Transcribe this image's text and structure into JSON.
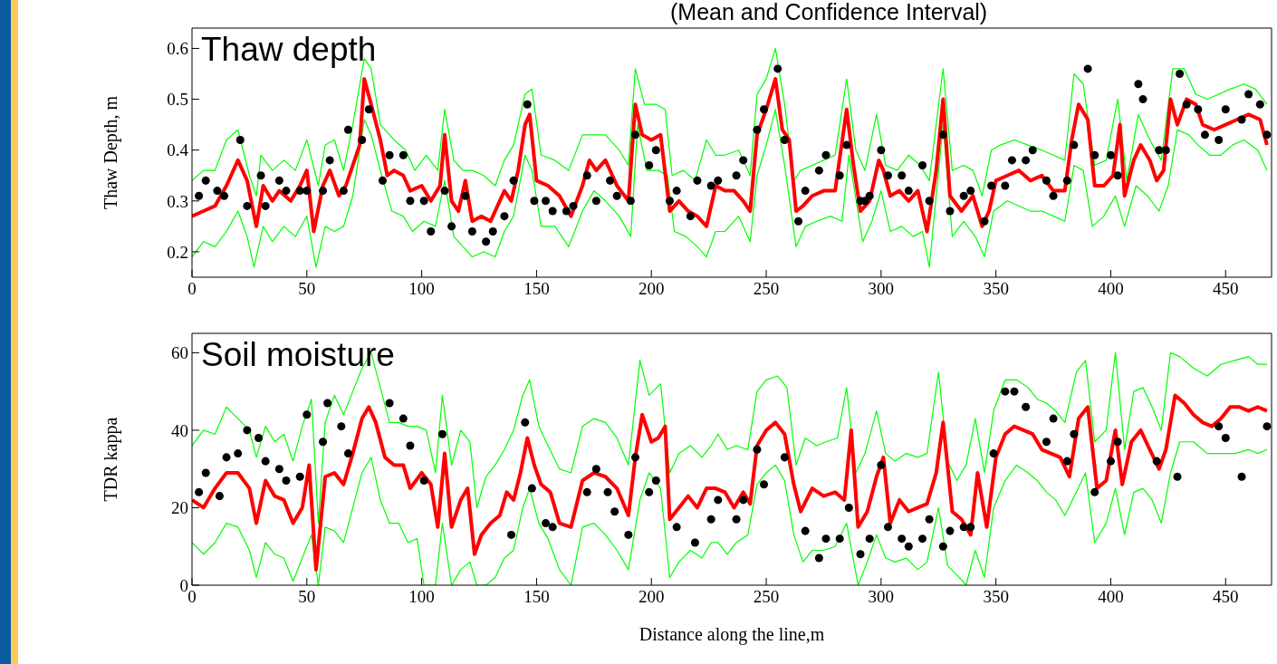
{
  "chart_data": [
    {
      "type": "line",
      "title": "(Mean and Confidence Interval)",
      "ylabel": "Thaw Depth, m",
      "annotations": [
        "Thaw depth"
      ],
      "xlim": [
        0,
        470
      ],
      "xticks": [
        0,
        50,
        100,
        150,
        200,
        250,
        300,
        350,
        400,
        450
      ],
      "ylim": [
        0.15,
        0.64
      ],
      "yticks": [
        0.2,
        0.3,
        0.4,
        0.5,
        0.6
      ],
      "series": [
        {
          "type": "line",
          "color": "#00ff00",
          "x": [
            0,
            5,
            10,
            15,
            20,
            25,
            28,
            30,
            35,
            40,
            45,
            50,
            55,
            58,
            62,
            66,
            70,
            75,
            78,
            82,
            88,
            93,
            97,
            102,
            107,
            110,
            114,
            118,
            122,
            127,
            132,
            136,
            140,
            145,
            148,
            152,
            158,
            164,
            170,
            175,
            180,
            186,
            190,
            193,
            197,
            202,
            206,
            209,
            214,
            219,
            224,
            228,
            232,
            238,
            243,
            246,
            250,
            254,
            258,
            262,
            265,
            270,
            275,
            280,
            285,
            289,
            293,
            298,
            302,
            307,
            312,
            317,
            321,
            327,
            331,
            336,
            340,
            344,
            348,
            352,
            358,
            364,
            370,
            375,
            380,
            384,
            388,
            393,
            398,
            403,
            407,
            412,
            417,
            422,
            427,
            432,
            437,
            442,
            447,
            452,
            458,
            463,
            468
          ],
          "values": [
            0.34,
            0.36,
            0.36,
            0.42,
            0.44,
            0.35,
            0.31,
            0.39,
            0.36,
            0.38,
            0.36,
            0.42,
            0.33,
            0.41,
            0.42,
            0.36,
            0.45,
            0.58,
            0.56,
            0.45,
            0.42,
            0.4,
            0.36,
            0.39,
            0.36,
            0.48,
            0.38,
            0.36,
            0.36,
            0.35,
            0.33,
            0.38,
            0.41,
            0.51,
            0.52,
            0.39,
            0.38,
            0.36,
            0.43,
            0.43,
            0.43,
            0.4,
            0.37,
            0.56,
            0.49,
            0.49,
            0.48,
            0.35,
            0.36,
            0.34,
            0.42,
            0.39,
            0.39,
            0.4,
            0.35,
            0.51,
            0.54,
            0.6,
            0.49,
            0.34,
            0.36,
            0.37,
            0.38,
            0.39,
            0.54,
            0.4,
            0.36,
            0.47,
            0.37,
            0.36,
            0.39,
            0.37,
            0.34,
            0.56,
            0.36,
            0.37,
            0.36,
            0.31,
            0.4,
            0.41,
            0.42,
            0.41,
            0.4,
            0.39,
            0.38,
            0.55,
            0.53,
            0.37,
            0.38,
            0.5,
            0.34,
            0.47,
            0.42,
            0.38,
            0.56,
            0.56,
            0.51,
            0.5,
            0.51,
            0.52,
            0.53,
            0.52,
            0.49
          ]
        },
        {
          "type": "line",
          "color": "#00ff00",
          "x": [
            0,
            5,
            10,
            15,
            20,
            24,
            27,
            31,
            35,
            40,
            45,
            50,
            54,
            58,
            62,
            66,
            70,
            75,
            78,
            82,
            87,
            92,
            96,
            101,
            106,
            110,
            114,
            118,
            122,
            127,
            132,
            136,
            140,
            145,
            148,
            152,
            158,
            164,
            170,
            175,
            180,
            186,
            191,
            194,
            198,
            203,
            207,
            210,
            215,
            220,
            224,
            228,
            232,
            238,
            243,
            246,
            250,
            254,
            258,
            263,
            267,
            272,
            278,
            283,
            286,
            292,
            296,
            300,
            304,
            309,
            314,
            318,
            321,
            327,
            331,
            336,
            341,
            345,
            349,
            355,
            360,
            365,
            370,
            375,
            380,
            384,
            388,
            392,
            397,
            402,
            406,
            411,
            416,
            421,
            425,
            429,
            434,
            438,
            443,
            448,
            453,
            458,
            464,
            468
          ],
          "values": [
            0.19,
            0.22,
            0.21,
            0.24,
            0.28,
            0.23,
            0.17,
            0.25,
            0.22,
            0.25,
            0.23,
            0.27,
            0.17,
            0.25,
            0.24,
            0.25,
            0.31,
            0.46,
            0.43,
            0.36,
            0.28,
            0.27,
            0.24,
            0.26,
            0.25,
            0.34,
            0.23,
            0.21,
            0.19,
            0.2,
            0.19,
            0.24,
            0.27,
            0.39,
            0.36,
            0.25,
            0.25,
            0.21,
            0.28,
            0.32,
            0.3,
            0.27,
            0.23,
            0.45,
            0.36,
            0.36,
            0.35,
            0.24,
            0.23,
            0.21,
            0.19,
            0.24,
            0.24,
            0.27,
            0.22,
            0.35,
            0.41,
            0.48,
            0.37,
            0.21,
            0.25,
            0.26,
            0.27,
            0.26,
            0.39,
            0.22,
            0.26,
            0.32,
            0.24,
            0.25,
            0.23,
            0.24,
            0.17,
            0.45,
            0.23,
            0.26,
            0.23,
            0.19,
            0.28,
            0.3,
            0.29,
            0.28,
            0.28,
            0.27,
            0.26,
            0.37,
            0.36,
            0.25,
            0.27,
            0.31,
            0.25,
            0.33,
            0.31,
            0.28,
            0.33,
            0.44,
            0.43,
            0.41,
            0.39,
            0.39,
            0.41,
            0.42,
            0.4,
            0.36
          ]
        },
        {
          "type": "line",
          "color": "#ff0000",
          "x": [
            0,
            5,
            10,
            15,
            20,
            24,
            28,
            31,
            35,
            38,
            43,
            47,
            50,
            53,
            57,
            60,
            64,
            67,
            70,
            73,
            75,
            78,
            82,
            85,
            88,
            92,
            95,
            100,
            104,
            108,
            110,
            113,
            116,
            119,
            122,
            126,
            130,
            133,
            136,
            139,
            142,
            145,
            147,
            150,
            155,
            160,
            165,
            170,
            173,
            176,
            180,
            185,
            190,
            193,
            196,
            200,
            204,
            208,
            212,
            216,
            220,
            224,
            228,
            232,
            236,
            240,
            243,
            246,
            250,
            254,
            257,
            260,
            263,
            266,
            270,
            275,
            280,
            285,
            288,
            291,
            295,
            299,
            301,
            304,
            308,
            312,
            316,
            320,
            324,
            327,
            330,
            335,
            340,
            344,
            347,
            350,
            355,
            360,
            365,
            370,
            375,
            380,
            383,
            386,
            390,
            393,
            397,
            401,
            404,
            406,
            410,
            413,
            417,
            420,
            423,
            426,
            429,
            433,
            437,
            440,
            445,
            450,
            455,
            460,
            465,
            468
          ],
          "values": [
            0.27,
            0.28,
            0.29,
            0.33,
            0.38,
            0.34,
            0.25,
            0.33,
            0.3,
            0.32,
            0.3,
            0.33,
            0.36,
            0.24,
            0.33,
            0.36,
            0.31,
            0.33,
            0.37,
            0.41,
            0.54,
            0.49,
            0.42,
            0.35,
            0.36,
            0.35,
            0.32,
            0.33,
            0.3,
            0.33,
            0.43,
            0.3,
            0.28,
            0.34,
            0.26,
            0.27,
            0.26,
            0.29,
            0.32,
            0.3,
            0.36,
            0.45,
            0.47,
            0.34,
            0.33,
            0.31,
            0.27,
            0.33,
            0.38,
            0.36,
            0.38,
            0.33,
            0.3,
            0.49,
            0.43,
            0.42,
            0.43,
            0.28,
            0.3,
            0.28,
            0.27,
            0.25,
            0.33,
            0.32,
            0.32,
            0.3,
            0.28,
            0.43,
            0.48,
            0.54,
            0.44,
            0.42,
            0.28,
            0.29,
            0.31,
            0.32,
            0.32,
            0.48,
            0.37,
            0.28,
            0.3,
            0.38,
            0.36,
            0.31,
            0.32,
            0.3,
            0.32,
            0.24,
            0.36,
            0.5,
            0.31,
            0.28,
            0.31,
            0.25,
            0.28,
            0.34,
            0.35,
            0.36,
            0.34,
            0.35,
            0.32,
            0.32,
            0.42,
            0.49,
            0.46,
            0.33,
            0.33,
            0.35,
            0.45,
            0.31,
            0.38,
            0.41,
            0.38,
            0.34,
            0.36,
            0.5,
            0.45,
            0.5,
            0.49,
            0.45,
            0.44,
            0.45,
            0.46,
            0.47,
            0.46,
            0.41
          ]
        },
        {
          "type": "scatter",
          "marker": "circle",
          "color": "#000000",
          "x": [
            3,
            6,
            11,
            14,
            21,
            24,
            30,
            32,
            38,
            41,
            47,
            50,
            57,
            60,
            66,
            68,
            74,
            77,
            83,
            86,
            92,
            95,
            101,
            104,
            110,
            113,
            119,
            122,
            128,
            131,
            136,
            140,
            146,
            149,
            154,
            157,
            163,
            166,
            172,
            176,
            182,
            185,
            191,
            193,
            199,
            202,
            208,
            211,
            217,
            220,
            226,
            229,
            237,
            240,
            246,
            249,
            255,
            258,
            264,
            267,
            273,
            276,
            282,
            285,
            291,
            293,
            295,
            300,
            303,
            309,
            312,
            318,
            321,
            327,
            330,
            336,
            339,
            345,
            348,
            354,
            357,
            363,
            366,
            372,
            375,
            381,
            384,
            390,
            393,
            400,
            403,
            412,
            414,
            421,
            424,
            430,
            433,
            438,
            441,
            447,
            450,
            457,
            460,
            465,
            468
          ],
          "values": [
            0.31,
            0.34,
            0.32,
            0.31,
            0.42,
            0.29,
            0.35,
            0.29,
            0.34,
            0.32,
            0.32,
            0.32,
            0.32,
            0.38,
            0.32,
            0.44,
            0.42,
            0.48,
            0.34,
            0.39,
            0.39,
            0.3,
            0.3,
            0.24,
            0.32,
            0.25,
            0.31,
            0.24,
            0.22,
            0.24,
            0.27,
            0.34,
            0.49,
            0.3,
            0.3,
            0.28,
            0.28,
            0.29,
            0.35,
            0.3,
            0.34,
            0.31,
            0.3,
            0.43,
            0.37,
            0.4,
            0.3,
            0.32,
            0.27,
            0.34,
            0.33,
            0.34,
            0.35,
            0.38,
            0.44,
            0.48,
            0.56,
            0.42,
            0.26,
            0.32,
            0.36,
            0.39,
            0.35,
            0.41,
            0.3,
            0.3,
            0.31,
            0.4,
            0.35,
            0.35,
            0.32,
            0.37,
            0.3,
            0.43,
            0.28,
            0.31,
            0.32,
            0.26,
            0.33,
            0.33,
            0.38,
            0.38,
            0.4,
            0.34,
            0.31,
            0.34,
            0.41,
            0.56,
            0.39,
            0.39,
            0.35,
            0.53,
            0.5,
            0.4,
            0.4,
            0.55,
            0.49,
            0.48,
            0.43,
            0.42,
            0.48,
            0.46,
            0.51,
            0.49,
            0.43
          ]
        }
      ]
    },
    {
      "type": "line",
      "xlabel": "Distance along the line,m",
      "ylabel": "TDR kappa",
      "annotations": [
        "Soil moisture"
      ],
      "xlim": [
        0,
        470
      ],
      "xticks": [
        0,
        50,
        100,
        150,
        200,
        250,
        300,
        350,
        400,
        450
      ],
      "ylim": [
        0,
        65
      ],
      "yticks": [
        0,
        20,
        40,
        60
      ],
      "series": [
        {
          "type": "line",
          "color": "#00ff00",
          "x": [
            0,
            5,
            10,
            15,
            20,
            25,
            28,
            32,
            36,
            40,
            44,
            48,
            52,
            55,
            58,
            62,
            66,
            70,
            74,
            78,
            82,
            86,
            90,
            94,
            98,
            102,
            106,
            109,
            113,
            117,
            121,
            124,
            128,
            132,
            136,
            140,
            144,
            147,
            151,
            155,
            160,
            165,
            170,
            175,
            180,
            185,
            190,
            195,
            199,
            204,
            208,
            212,
            217,
            222,
            226,
            229,
            233,
            237,
            242,
            246,
            250,
            255,
            259,
            263,
            267,
            272,
            276,
            281,
            285,
            289,
            293,
            298,
            302,
            306,
            311,
            316,
            320,
            325,
            329,
            333,
            337,
            341,
            345,
            349,
            354,
            359,
            364,
            368,
            372,
            376,
            380,
            385,
            389,
            393,
            398,
            402,
            406,
            410,
            414,
            418,
            422,
            426,
            430,
            436,
            442,
            448,
            454,
            460,
            464,
            468
          ],
          "values": [
            36,
            40,
            39,
            46,
            43,
            40,
            33,
            41,
            37,
            39,
            32,
            41,
            48,
            16,
            42,
            49,
            44,
            50,
            56,
            60,
            51,
            42,
            42,
            41,
            41,
            40,
            29,
            49,
            31,
            40,
            37,
            20,
            28,
            31,
            35,
            40,
            49,
            53,
            41,
            36,
            30,
            29,
            41,
            43,
            42,
            38,
            31,
            58,
            49,
            52,
            29,
            34,
            36,
            33,
            36,
            39,
            35,
            36,
            35,
            50,
            53,
            54,
            51,
            31,
            38,
            36,
            37,
            38,
            51,
            29,
            34,
            45,
            34,
            32,
            34,
            33,
            34,
            55,
            32,
            27,
            31,
            43,
            29,
            45,
            53,
            53,
            51,
            48,
            47,
            45,
            42,
            55,
            58,
            37,
            40,
            60,
            35,
            50,
            51,
            46,
            40,
            60,
            59,
            56,
            54,
            57,
            58,
            59,
            57,
            57
          ]
        },
        {
          "type": "line",
          "color": "#00ff00",
          "x": [
            0,
            5,
            10,
            15,
            20,
            25,
            28,
            32,
            36,
            40,
            44,
            48,
            52,
            55,
            58,
            62,
            66,
            70,
            74,
            78,
            82,
            86,
            90,
            94,
            98,
            101,
            106,
            109,
            113,
            117,
            121,
            124,
            128,
            132,
            136,
            140,
            144,
            147,
            151,
            155,
            160,
            165,
            170,
            175,
            180,
            185,
            190,
            195,
            199,
            204,
            208,
            212,
            217,
            222,
            226,
            229,
            233,
            237,
            242,
            246,
            250,
            254,
            258,
            262,
            266,
            270,
            275,
            280,
            285,
            290,
            294,
            298,
            302,
            306,
            311,
            316,
            320,
            325,
            329,
            334,
            337,
            341,
            345,
            349,
            354,
            359,
            364,
            368,
            372,
            376,
            380,
            385,
            389,
            393,
            398,
            402,
            406,
            410,
            414,
            418,
            422,
            426,
            430,
            436,
            442,
            448,
            454,
            460,
            464,
            468
          ],
          "values": [
            11,
            8,
            11,
            16,
            15,
            9,
            2,
            11,
            8,
            7,
            1,
            7,
            13,
            0,
            15,
            14,
            11,
            20,
            29,
            33,
            22,
            16,
            16,
            11,
            12,
            0,
            0,
            16,
            0,
            4,
            6,
            0,
            0,
            2,
            7,
            9,
            20,
            25,
            16,
            12,
            4,
            0,
            15,
            16,
            13,
            9,
            4,
            22,
            29,
            25,
            2,
            6,
            9,
            7,
            11,
            11,
            8,
            11,
            13,
            26,
            29,
            31,
            27,
            13,
            6,
            9,
            9,
            10,
            16,
            0,
            6,
            13,
            7,
            6,
            7,
            4,
            6,
            20,
            5,
            2,
            0,
            9,
            2,
            20,
            27,
            31,
            29,
            27,
            24,
            22,
            18,
            24,
            29,
            11,
            16,
            25,
            13,
            24,
            25,
            22,
            16,
            29,
            37,
            37,
            34,
            34,
            34,
            35,
            34,
            35
          ]
        },
        {
          "type": "line",
          "color": "#ff0000",
          "x": [
            0,
            5,
            10,
            15,
            20,
            25,
            28,
            32,
            36,
            40,
            44,
            48,
            51,
            54,
            58,
            62,
            66,
            70,
            74,
            77,
            80,
            84,
            88,
            92,
            95,
            100,
            104,
            107,
            110,
            113,
            117,
            120,
            123,
            126,
            130,
            134,
            137,
            140,
            143,
            146,
            149,
            152,
            156,
            160,
            165,
            170,
            175,
            180,
            185,
            190,
            193,
            196,
            200,
            203,
            206,
            208,
            212,
            216,
            220,
            224,
            228,
            232,
            236,
            240,
            243,
            246,
            250,
            254,
            258,
            262,
            265,
            270,
            275,
            280,
            284,
            287,
            290,
            294,
            298,
            301,
            304,
            308,
            312,
            316,
            320,
            324,
            327,
            331,
            335,
            339,
            342,
            346,
            350,
            354,
            358,
            362,
            366,
            370,
            374,
            378,
            382,
            386,
            390,
            394,
            398,
            402,
            405,
            409,
            413,
            417,
            421,
            424,
            428,
            432,
            436,
            440,
            444,
            448,
            452,
            456,
            460,
            464,
            468
          ],
          "values": [
            22,
            20,
            25,
            29,
            29,
            25,
            16,
            27,
            23,
            22,
            16,
            20,
            31,
            4,
            28,
            29,
            26,
            34,
            43,
            46,
            42,
            33,
            31,
            31,
            25,
            29,
            26,
            15,
            34,
            15,
            22,
            25,
            8,
            13,
            16,
            18,
            24,
            22,
            29,
            38,
            31,
            26,
            24,
            16,
            15,
            27,
            29,
            28,
            25,
            18,
            33,
            44,
            37,
            38,
            41,
            17,
            20,
            23,
            20,
            25,
            25,
            24,
            20,
            24,
            21,
            36,
            40,
            42,
            39,
            26,
            19,
            25,
            23,
            24,
            22,
            40,
            15,
            19,
            28,
            33,
            16,
            22,
            19,
            20,
            21,
            29,
            42,
            19,
            17,
            13,
            29,
            15,
            33,
            39,
            41,
            40,
            39,
            35,
            34,
            33,
            28,
            43,
            46,
            25,
            27,
            40,
            26,
            37,
            40,
            35,
            30,
            35,
            49,
            47,
            44,
            42,
            41,
            43,
            46,
            46,
            45,
            46,
            45
          ]
        },
        {
          "type": "scatter",
          "marker": "circle",
          "color": "#000000",
          "x": [
            3,
            6,
            12,
            15,
            20,
            24,
            29,
            32,
            38,
            41,
            47,
            50,
            57,
            59,
            65,
            68,
            86,
            92,
            95,
            101,
            109,
            139,
            145,
            148,
            154,
            157,
            172,
            176,
            181,
            184,
            190,
            193,
            199,
            202,
            211,
            219,
            226,
            229,
            237,
            240,
            246,
            249,
            258,
            267,
            273,
            276,
            282,
            286,
            291,
            295,
            300,
            303,
            309,
            312,
            318,
            321,
            327,
            330,
            336,
            339,
            349,
            354,
            358,
            363,
            372,
            375,
            381,
            384,
            393,
            400,
            403,
            420,
            429,
            447,
            450,
            457,
            468
          ],
          "values": [
            24,
            29,
            23,
            33,
            34,
            40,
            38,
            32,
            30,
            27,
            28,
            44,
            37,
            47,
            41,
            34,
            47,
            43,
            36,
            27,
            39,
            13,
            42,
            25,
            16,
            15,
            24,
            30,
            24,
            19,
            13,
            33,
            24,
            27,
            15,
            11,
            17,
            22,
            17,
            22,
            35,
            26,
            33,
            14,
            7,
            12,
            12,
            20,
            8,
            12,
            31,
            15,
            12,
            10,
            12,
            17,
            10,
            14,
            15,
            15,
            34,
            50,
            50,
            46,
            37,
            43,
            32,
            39,
            24,
            32,
            37,
            32,
            28,
            41,
            38,
            28,
            41
          ]
        }
      ]
    }
  ]
}
